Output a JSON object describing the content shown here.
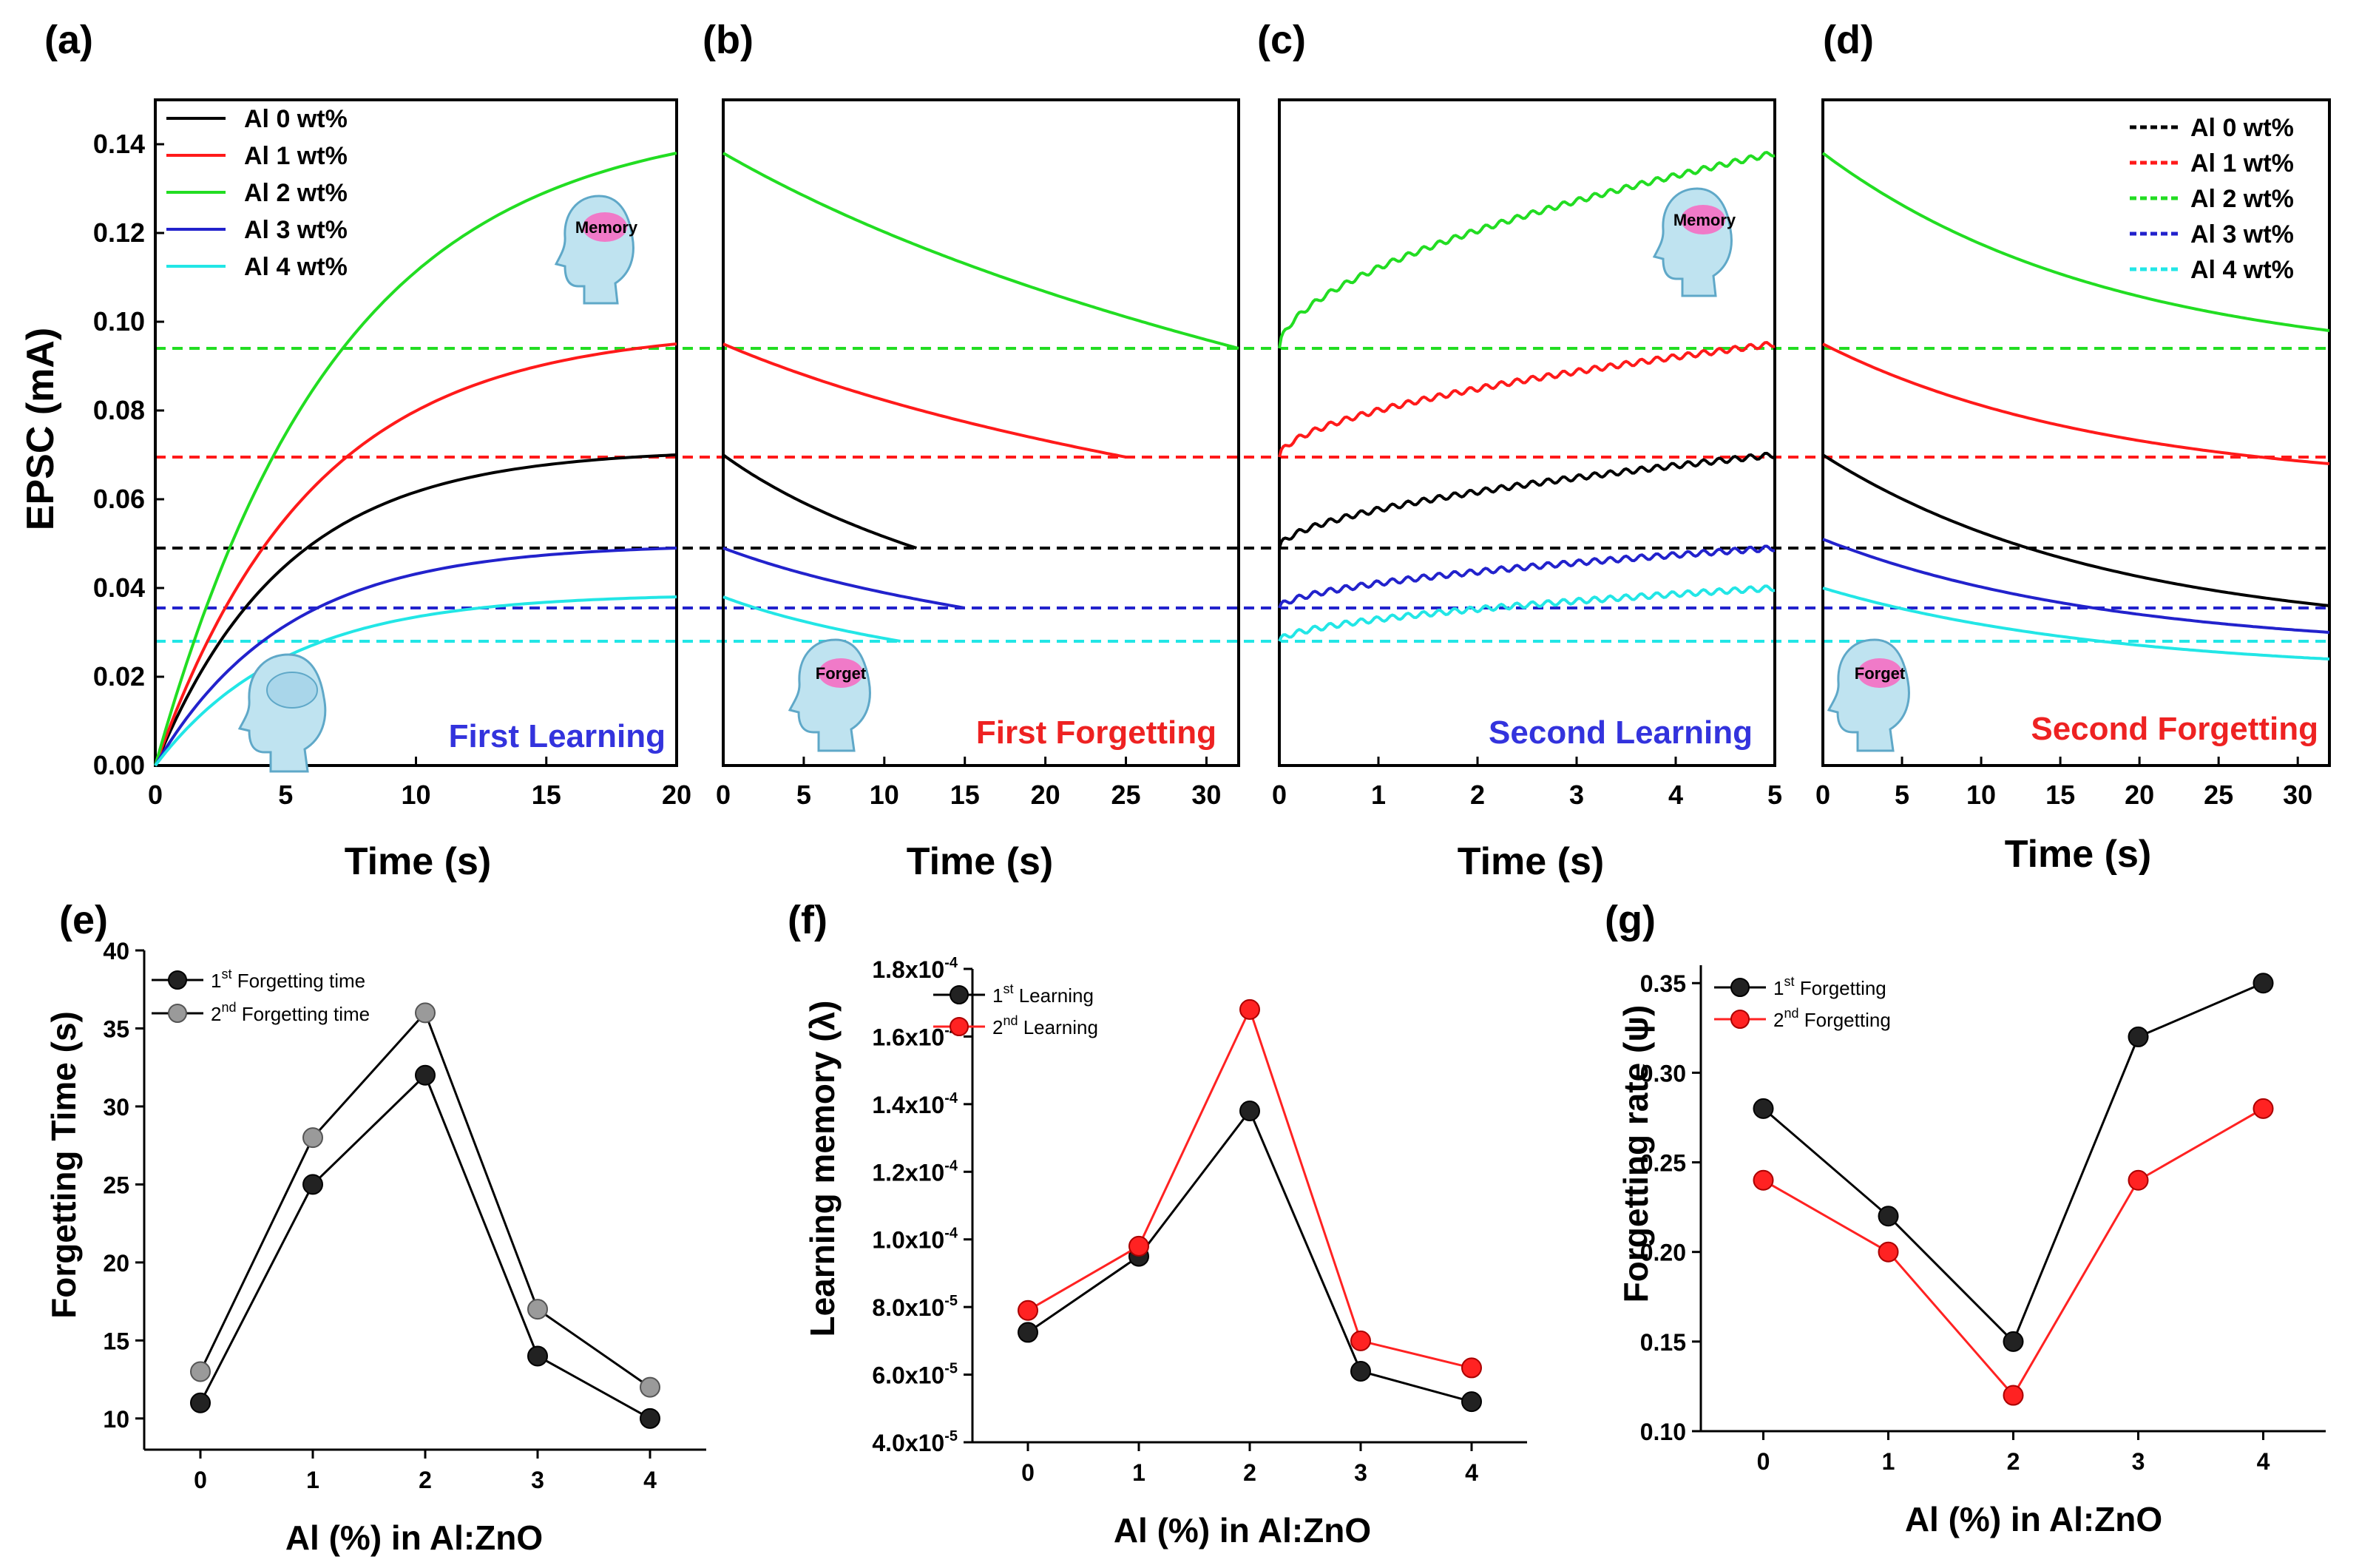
{
  "colors": {
    "al0": "#000000",
    "al1": "#ff1a1a",
    "al2": "#22dd22",
    "al3": "#2222cc",
    "al4": "#22e6e6",
    "learn": "#3333dd",
    "forget": "#ee2222",
    "gray": "#9a9a9a",
    "red": "#ff2222"
  },
  "panels": {
    "a": {
      "label": "(a)",
      "phase": "First Learning",
      "phase_color": "#3333dd",
      "xlabel": "Time (s)",
      "ylabel": "EPSC (mA)",
      "icon": "Memory",
      "icon2": ""
    },
    "b": {
      "label": "(b)",
      "phase": "First Forgetting",
      "phase_color": "#ee2222",
      "xlabel": "Time (s)",
      "icon": "Forget"
    },
    "c": {
      "label": "(c)",
      "phase": "Second Learning",
      "phase_color": "#3333dd",
      "xlabel": "Time (s)",
      "icon": "Memory"
    },
    "d": {
      "label": "(d)",
      "phase": "Second Forgetting",
      "phase_color": "#ee2222",
      "xlabel": "Time (s)",
      "icon": "Forget"
    },
    "e": {
      "label": "(e)",
      "xlabel": "Al (%) in Al:ZnO",
      "ylabel": "Forgetting Time (s)"
    },
    "f": {
      "label": "(f)",
      "xlabel": "Al (%) in Al:ZnO",
      "ylabel": "Learning memory (λ)"
    },
    "g": {
      "label": "(g)",
      "xlabel": "Al (%) in Al:ZnO",
      "ylabel": "Forgetting rate (ψ)"
    }
  },
  "legend_top": [
    "Al 0 wt%",
    "Al 1 wt%",
    "Al 2 wt%",
    "Al 3 wt%",
    "Al 4 wt%"
  ],
  "chart_data": [
    {
      "id": "a",
      "type": "line",
      "title": "First Learning",
      "xlabel": "Time (s)",
      "ylabel": "EPSC (mA)",
      "xlim": [
        0,
        20
      ],
      "ylim": [
        0,
        0.15
      ],
      "xticks": [
        "0",
        "5",
        "10",
        "15",
        "20"
      ],
      "yticks": [
        "0.00",
        "0.02",
        "0.04",
        "0.06",
        "0.08",
        "0.10",
        "0.12",
        "0.14"
      ],
      "series": [
        {
          "name": "Al 0 wt%",
          "start": 0,
          "end": 0.07,
          "tau": 5
        },
        {
          "name": "Al 1 wt%",
          "start": 0,
          "end": 0.095,
          "tau": 6
        },
        {
          "name": "Al 2 wt%",
          "start": 0,
          "end": 0.138,
          "tau": 7
        },
        {
          "name": "Al 3 wt%",
          "start": 0,
          "end": 0.049,
          "tau": 5
        },
        {
          "name": "Al 4 wt%",
          "start": 0,
          "end": 0.038,
          "tau": 5
        }
      ],
      "reference_lines": [
        0.049,
        0.0695,
        0.094,
        0.0355,
        0.028
      ]
    },
    {
      "id": "b",
      "type": "line",
      "title": "First Forgetting",
      "xlabel": "Time (s)",
      "xlim": [
        0,
        32
      ],
      "ylim": [
        0,
        0.15
      ],
      "xticks": [
        "0",
        "5",
        "10",
        "15",
        "20",
        "25",
        "30"
      ],
      "series": [
        {
          "name": "Al 0 wt%",
          "start": 0.07,
          "end": 0.049,
          "tend": 12
        },
        {
          "name": "Al 1 wt%",
          "start": 0.095,
          "end": 0.0695,
          "tend": 25
        },
        {
          "name": "Al 2 wt%",
          "start": 0.138,
          "end": 0.094,
          "tend": 32
        },
        {
          "name": "Al 3 wt%",
          "start": 0.049,
          "end": 0.0355,
          "tend": 15
        },
        {
          "name": "Al 4 wt%",
          "start": 0.038,
          "end": 0.028,
          "tend": 11
        }
      ]
    },
    {
      "id": "c",
      "type": "line",
      "title": "Second Learning",
      "xlabel": "Time (s)",
      "xlim": [
        0,
        5
      ],
      "ylim": [
        0,
        0.15
      ],
      "xticks": [
        "0",
        "1",
        "2",
        "3",
        "4",
        "5"
      ],
      "series": [
        {
          "name": "Al 0 wt%",
          "start": 0.049,
          "end": 0.07
        },
        {
          "name": "Al 1 wt%",
          "start": 0.0695,
          "end": 0.095
        },
        {
          "name": "Al 2 wt%",
          "start": 0.094,
          "end": 0.138
        },
        {
          "name": "Al 3 wt%",
          "start": 0.0355,
          "end": 0.049
        },
        {
          "name": "Al 4 wt%",
          "start": 0.028,
          "end": 0.04
        }
      ]
    },
    {
      "id": "d",
      "type": "line",
      "title": "Second Forgetting",
      "xlabel": "Time (s)",
      "xlim": [
        0,
        32
      ],
      "ylim": [
        0,
        0.15
      ],
      "xticks": [
        "0",
        "5",
        "10",
        "15",
        "20",
        "25",
        "30"
      ],
      "legend": [
        "Al 0 wt%",
        "Al 1 wt%",
        "Al 2 wt%",
        "Al 3 wt%",
        "Al 4 wt%"
      ],
      "series": [
        {
          "name": "Al 0 wt%",
          "start": 0.07,
          "end": 0.036
        },
        {
          "name": "Al 1 wt%",
          "start": 0.095,
          "end": 0.068
        },
        {
          "name": "Al 2 wt%",
          "start": 0.138,
          "end": 0.098
        },
        {
          "name": "Al 3 wt%",
          "start": 0.051,
          "end": 0.03
        },
        {
          "name": "Al 4 wt%",
          "start": 0.04,
          "end": 0.024
        }
      ]
    },
    {
      "id": "e",
      "type": "line",
      "xlabel": "Al (%) in Al:ZnO",
      "ylabel": "Forgetting Time (s)",
      "xlim": [
        -0.5,
        4.5
      ],
      "ylim": [
        8,
        40
      ],
      "categories": [
        0,
        1,
        2,
        3,
        4
      ],
      "xticks": [
        "0",
        "1",
        "2",
        "3",
        "4"
      ],
      "yticks": [
        "10",
        "15",
        "20",
        "25",
        "30",
        "35",
        "40"
      ],
      "series": [
        {
          "name": "1st Forgetting time",
          "values": [
            11,
            25,
            32,
            14,
            10
          ]
        },
        {
          "name": "2nd Forgetting time",
          "values": [
            13,
            28,
            36,
            17,
            12
          ]
        }
      ]
    },
    {
      "id": "f",
      "type": "line",
      "xlabel": "Al (%) in Al:ZnO",
      "ylabel": "Learning memory (λ)",
      "xlim": [
        -0.5,
        4.5
      ],
      "ylim": [
        4e-05,
        0.00018
      ],
      "categories": [
        0,
        1,
        2,
        3,
        4
      ],
      "xticks": [
        "0",
        "1",
        "2",
        "3",
        "4"
      ],
      "ytick_labels": [
        [
          "4.0x10",
          "-5"
        ],
        [
          "6.0x10",
          "-5"
        ],
        [
          "8.0x10",
          "-5"
        ],
        [
          "1.0x10",
          "-4"
        ],
        [
          "1.2x10",
          "-4"
        ],
        [
          "1.4x10",
          "-4"
        ],
        [
          "1.6x10",
          "-4"
        ],
        [
          "1.8x10",
          "-4"
        ]
      ],
      "series": [
        {
          "name": "1st Learning",
          "values": [
            7.25e-05,
            9.5e-05,
            0.000138,
            6.1e-05,
            5.2e-05
          ]
        },
        {
          "name": "2nd Learning",
          "values": [
            7.9e-05,
            9.8e-05,
            0.000168,
            7e-05,
            6.2e-05
          ]
        }
      ]
    },
    {
      "id": "g",
      "type": "line",
      "xlabel": "Al (%) in Al:ZnO",
      "ylabel": "Forgetting rate (ψ)",
      "xlim": [
        -0.5,
        4.5
      ],
      "ylim": [
        0.1,
        0.36
      ],
      "categories": [
        0,
        1,
        2,
        3,
        4
      ],
      "xticks": [
        "0",
        "1",
        "2",
        "3",
        "4"
      ],
      "yticks": [
        "0.10",
        "0.15",
        "0.20",
        "0.25",
        "0.30",
        "0.35"
      ],
      "series": [
        {
          "name": "1st Forgetting",
          "values": [
            0.28,
            0.22,
            0.15,
            0.32,
            0.35
          ]
        },
        {
          "name": "2nd Forgetting",
          "values": [
            0.24,
            0.2,
            0.12,
            0.24,
            0.28
          ]
        }
      ]
    }
  ],
  "legend_bottom": {
    "e": [
      {
        "base": "1",
        "sup": "st",
        "rest": " Forgetting time"
      },
      {
        "base": "2",
        "sup": "nd",
        "rest": " Forgetting time"
      }
    ],
    "f": [
      {
        "base": "1",
        "sup": "st",
        "rest": " Learning"
      },
      {
        "base": "2",
        "sup": "nd",
        "rest": " Learning"
      }
    ],
    "g": [
      {
        "base": "1",
        "sup": "st",
        "rest": " Forgetting"
      },
      {
        "base": "2",
        "sup": "nd",
        "rest": " Forgetting"
      }
    ]
  }
}
